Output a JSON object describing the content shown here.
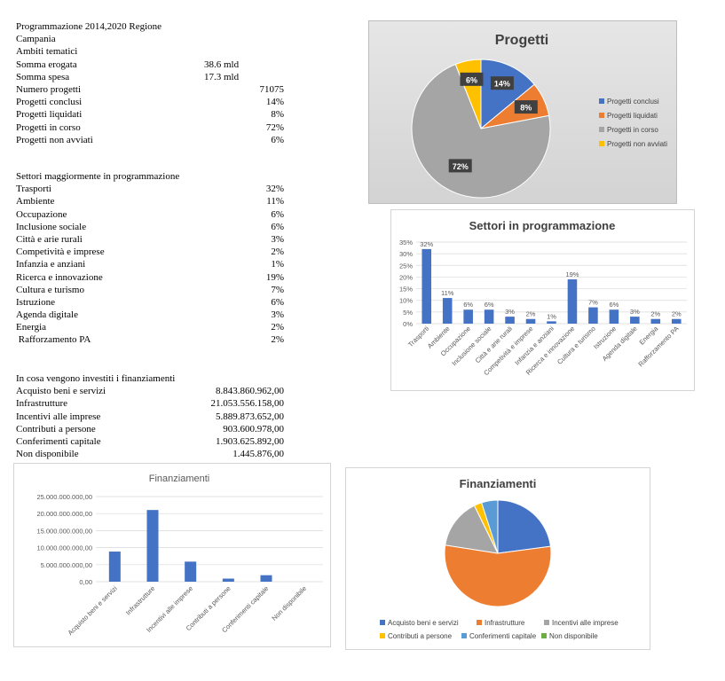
{
  "summary": {
    "title_line1": "Programmazione 2014,2020 Regione",
    "title_line2": "Campania",
    "subtitle": "Ambiti tematici",
    "rows_mid": [
      {
        "label": "Somma erogata",
        "value": "38.6 mld"
      },
      {
        "label": "Somma spesa",
        "value": "17.3 mld"
      }
    ],
    "rows_right": [
      {
        "label": "Numero progetti",
        "value": "71075"
      },
      {
        "label": "Progetti conclusi",
        "value": "14%"
      },
      {
        "label": "Progetti liquidati",
        "value": "8%"
      },
      {
        "label": "Progetti in corso",
        "value": "72%"
      },
      {
        "label": "Progetti non avviati",
        "value": "6%"
      }
    ]
  },
  "sectors_table": {
    "title": "Settori maggiormente in programmazione",
    "rows": [
      {
        "label": "Trasporti",
        "value": "32%"
      },
      {
        "label": "Ambiente",
        "value": "11%"
      },
      {
        "label": "Occupazione",
        "value": "6%"
      },
      {
        "label": "Inclusione sociale",
        "value": "6%"
      },
      {
        "label": "Città e arie rurali",
        "value": "3%"
      },
      {
        "label": "Competività e imprese",
        "value": "2%"
      },
      {
        "label": "Infanzia e anziani",
        "value": "1%"
      },
      {
        "label": "Ricerca e innovazione",
        "value": "19%"
      },
      {
        "label": "Cultura e turismo",
        "value": "7%"
      },
      {
        "label": "Istruzione",
        "value": "6%"
      },
      {
        "label": "Agenda digitale",
        "value": "3%"
      },
      {
        "label": "Energia",
        "value": "2%"
      },
      {
        "label": " Rafforzamento PA",
        "value": "2%"
      }
    ]
  },
  "funding_table": {
    "title": "In cosa vengono investiti i finanziamenti",
    "rows": [
      {
        "label": "Acquisto beni e servizi",
        "value": "8.843.860.962,00"
      },
      {
        "label": "Infrastrutture",
        "value": "21.053.556.158,00"
      },
      {
        "label": "Incentivi alle imprese",
        "value": "5.889.873.652,00"
      },
      {
        "label": "Contributi a persone",
        "value": "903.600.978,00"
      },
      {
        "label": "Conferimenti capitale",
        "value": "1.903.625.892,00"
      },
      {
        "label": "Non disponibile",
        "value": "1.445.876,00"
      }
    ]
  },
  "chart_data": [
    {
      "type": "pie",
      "title": "Progetti",
      "categories": [
        "Progetti conclusi",
        "Progetti liquidati",
        "Progetti in corso",
        "Progetti non avviati"
      ],
      "values": [
        14,
        8,
        72,
        6
      ],
      "data_labels": [
        "14%",
        "8%",
        "72%",
        "6%"
      ],
      "colors": [
        "#4472c4",
        "#ed7d31",
        "#a5a5a5",
        "#ffc000"
      ],
      "legend": "right",
      "background": "#d9d9d9"
    },
    {
      "type": "bar",
      "title": "Settori in programmazione",
      "categories": [
        "Trasporti",
        "Ambiente",
        "Occupazione",
        "Inclusione sociale",
        "Città e arie rurali",
        "Competività e imprese",
        "Infanzia e anziani",
        "Ricerca e innovazione",
        "Cultura e turismo",
        "Istruzione",
        "Agenda digitale",
        "Energia",
        "Rafforzamento PA"
      ],
      "values": [
        32,
        11,
        6,
        6,
        3,
        2,
        1,
        19,
        7,
        6,
        3,
        2,
        2
      ],
      "data_labels": [
        "32%",
        "11%",
        "6%",
        "6%",
        "3%",
        "2%",
        "1%",
        "19%",
        "7%",
        "6%",
        "3%",
        "2%",
        "2%"
      ],
      "yticks": [
        "0%",
        "5%",
        "10%",
        "15%",
        "20%",
        "25%",
        "30%",
        "35%"
      ],
      "ylim": [
        0,
        35
      ],
      "color": "#4472c4",
      "grid": true
    },
    {
      "type": "bar",
      "title": "Finanziamenti",
      "categories": [
        "Acquisto beni e servizi",
        "Infrastrutture",
        "Incentivi alle imprese",
        "Contributi a persone",
        "Conferimenti capitale",
        "Non disponibile"
      ],
      "values": [
        8843860962,
        21053556158,
        5889873652,
        903600978,
        1903625892,
        1445876
      ],
      "yticks": [
        "0,00",
        "5.000.000.000,00",
        "10.000.000.000,00",
        "15.000.000.000,00",
        "20.000.000.000,00",
        "25.000.000.000,00"
      ],
      "ylim": [
        0,
        25000000000
      ],
      "color": "#4472c4",
      "grid": true
    },
    {
      "type": "pie",
      "title": "Finanziamenti",
      "categories": [
        "Acquisto beni e servizi",
        "Infrastrutture",
        "Incentivi alle imprese",
        "Contributi a persone",
        "Conferimenti capitale",
        "Non disponibile"
      ],
      "values": [
        8843860962,
        21053556158,
        5889873652,
        903600978,
        1903625892,
        1445876
      ],
      "colors": [
        "#4472c4",
        "#ed7d31",
        "#a5a5a5",
        "#ffc000",
        "#5b9bd5",
        "#70ad47"
      ],
      "legend": "bottom"
    }
  ]
}
